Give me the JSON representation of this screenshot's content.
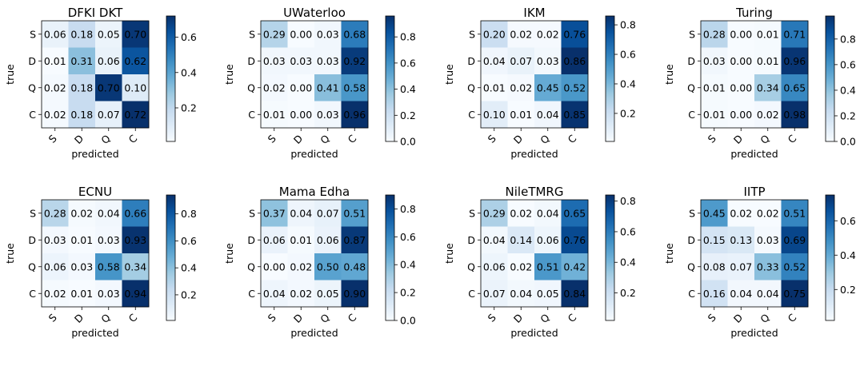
{
  "chart_data": [
    {
      "type": "heatmap",
      "title": "DFKI DKT",
      "xlabel": "predicted",
      "ylabel": "true",
      "x_categories": [
        "S",
        "D",
        "Q",
        "C"
      ],
      "y_categories": [
        "S",
        "D",
        "Q",
        "C"
      ],
      "values": [
        [
          0.06,
          0.18,
          0.05,
          0.7
        ],
        [
          0.01,
          0.31,
          0.06,
          0.62
        ],
        [
          0.02,
          0.18,
          0.7,
          0.1
        ],
        [
          0.02,
          0.18,
          0.07,
          0.72
        ]
      ],
      "colorbar": {
        "min": 0.01,
        "max": 0.72,
        "ticks": [
          0.2,
          0.4,
          0.6
        ]
      }
    },
    {
      "type": "heatmap",
      "title": "UWaterloo",
      "xlabel": "predicted",
      "ylabel": "true",
      "x_categories": [
        "S",
        "D",
        "Q",
        "C"
      ],
      "y_categories": [
        "S",
        "D",
        "Q",
        "C"
      ],
      "values": [
        [
          0.29,
          0.0,
          0.03,
          0.68
        ],
        [
          0.03,
          0.03,
          0.03,
          0.92
        ],
        [
          0.02,
          0.0,
          0.41,
          0.58
        ],
        [
          0.01,
          0.0,
          0.03,
          0.96
        ]
      ],
      "colorbar": {
        "min": 0.0,
        "max": 0.96,
        "ticks": [
          0.0,
          0.2,
          0.4,
          0.6,
          0.8
        ]
      }
    },
    {
      "type": "heatmap",
      "title": "IKM",
      "xlabel": "predicted",
      "ylabel": "true",
      "x_categories": [
        "S",
        "D",
        "Q",
        "C"
      ],
      "y_categories": [
        "S",
        "D",
        "Q",
        "C"
      ],
      "values": [
        [
          0.2,
          0.02,
          0.02,
          0.76
        ],
        [
          0.04,
          0.07,
          0.03,
          0.86
        ],
        [
          0.01,
          0.02,
          0.45,
          0.52
        ],
        [
          0.1,
          0.01,
          0.04,
          0.85
        ]
      ],
      "colorbar": {
        "min": 0.01,
        "max": 0.86,
        "ticks": [
          0.2,
          0.4,
          0.6,
          0.8
        ]
      }
    },
    {
      "type": "heatmap",
      "title": "Turing",
      "xlabel": "predicted",
      "ylabel": "true",
      "x_categories": [
        "S",
        "D",
        "Q",
        "C"
      ],
      "y_categories": [
        "S",
        "D",
        "Q",
        "C"
      ],
      "values": [
        [
          0.28,
          0.0,
          0.01,
          0.71
        ],
        [
          0.03,
          0.0,
          0.01,
          0.96
        ],
        [
          0.01,
          0.0,
          0.34,
          0.65
        ],
        [
          0.01,
          0.0,
          0.02,
          0.98
        ]
      ],
      "colorbar": {
        "min": 0.0,
        "max": 0.98,
        "ticks": [
          0.0,
          0.2,
          0.4,
          0.6,
          0.8
        ]
      }
    },
    {
      "type": "heatmap",
      "title": "ECNU",
      "xlabel": "predicted",
      "ylabel": "true",
      "x_categories": [
        "S",
        "D",
        "Q",
        "C"
      ],
      "y_categories": [
        "S",
        "D",
        "Q",
        "C"
      ],
      "values": [
        [
          0.28,
          0.02,
          0.04,
          0.66
        ],
        [
          0.03,
          0.01,
          0.03,
          0.93
        ],
        [
          0.06,
          0.03,
          0.58,
          0.34
        ],
        [
          0.02,
          0.01,
          0.03,
          0.94
        ]
      ],
      "colorbar": {
        "min": 0.01,
        "max": 0.94,
        "ticks": [
          0.2,
          0.4,
          0.6,
          0.8
        ]
      }
    },
    {
      "type": "heatmap",
      "title": "Mama Edha",
      "xlabel": "predicted",
      "ylabel": "true",
      "x_categories": [
        "S",
        "D",
        "Q",
        "C"
      ],
      "y_categories": [
        "S",
        "D",
        "Q",
        "C"
      ],
      "values": [
        [
          0.37,
          0.04,
          0.07,
          0.51
        ],
        [
          0.06,
          0.01,
          0.06,
          0.87
        ],
        [
          0.0,
          0.02,
          0.5,
          0.48
        ],
        [
          0.04,
          0.02,
          0.05,
          0.9
        ]
      ],
      "colorbar": {
        "min": 0.0,
        "max": 0.9,
        "ticks": [
          0.0,
          0.2,
          0.4,
          0.6,
          0.8
        ]
      }
    },
    {
      "type": "heatmap",
      "title": "NileTMRG",
      "xlabel": "predicted",
      "ylabel": "true",
      "x_categories": [
        "S",
        "D",
        "Q",
        "C"
      ],
      "y_categories": [
        "S",
        "D",
        "Q",
        "C"
      ],
      "values": [
        [
          0.29,
          0.02,
          0.04,
          0.65
        ],
        [
          0.04,
          0.14,
          0.06,
          0.76
        ],
        [
          0.06,
          0.02,
          0.51,
          0.42
        ],
        [
          0.07,
          0.04,
          0.05,
          0.84
        ]
      ],
      "colorbar": {
        "min": 0.02,
        "max": 0.84,
        "ticks": [
          0.2,
          0.4,
          0.6,
          0.8
        ]
      }
    },
    {
      "type": "heatmap",
      "title": "IITP",
      "xlabel": "predicted",
      "ylabel": "true",
      "x_categories": [
        "S",
        "D",
        "Q",
        "C"
      ],
      "y_categories": [
        "S",
        "D",
        "Q",
        "C"
      ],
      "values": [
        [
          0.45,
          0.02,
          0.02,
          0.51
        ],
        [
          0.15,
          0.13,
          0.03,
          0.69
        ],
        [
          0.08,
          0.07,
          0.33,
          0.52
        ],
        [
          0.16,
          0.04,
          0.04,
          0.75
        ]
      ],
      "colorbar": {
        "min": 0.02,
        "max": 0.75,
        "ticks": [
          0.2,
          0.4,
          0.6
        ]
      }
    }
  ]
}
